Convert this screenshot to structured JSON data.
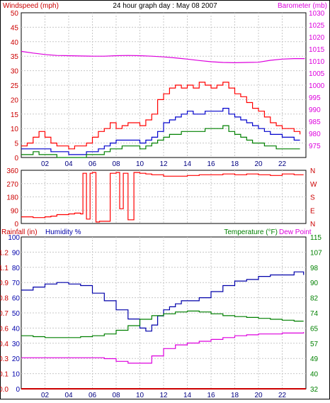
{
  "header": {
    "title": "24 hour graph day : May 08 2007",
    "left_label": "Windspeed (mph)",
    "right_label": "Barometer (mb)"
  },
  "colors": {
    "frame": "#000000",
    "grid": "#c8c8c8",
    "wind_red": "#ff0000",
    "gust_red": "#ff0000",
    "avg_blue": "#0000cc",
    "green": "#008000",
    "magenta": "#dd00dd",
    "axis_red": "#cc0000",
    "axis_blue": "#0000aa",
    "axis_green": "#008000"
  },
  "chart_data": [
    {
      "type": "line",
      "name": "wind-barometer",
      "title": "24 hour graph day : May 08 2007",
      "ylabel": "Windspeed (mph)",
      "y2label": "Barometer (mb)",
      "xlim": [
        0,
        24
      ],
      "ylim": [
        0,
        50
      ],
      "y2lim": [
        970,
        1030
      ],
      "xticks": [
        "02",
        "04",
        "06",
        "08",
        "10",
        "12",
        "14",
        "16",
        "18",
        "20",
        "22"
      ],
      "yticks": [
        "0",
        "5",
        "10",
        "15",
        "20",
        "25",
        "30",
        "35",
        "40",
        "45",
        "50"
      ],
      "y2ticks": [
        "975",
        "980",
        "985",
        "990",
        "995",
        "1000",
        "1005",
        "1010",
        "1015",
        "1020",
        "1025",
        "1030"
      ],
      "grid": true,
      "series": [
        {
          "id": "gust",
          "color": "#ff0000",
          "axis": "left",
          "x": [
            0,
            0.5,
            1,
            1.5,
            2,
            2.5,
            3,
            3.5,
            4,
            4.5,
            5,
            5.5,
            6,
            6.5,
            7,
            7.5,
            8,
            8.5,
            9,
            9.5,
            10,
            10.5,
            11,
            11.5,
            12,
            12.5,
            13,
            13.5,
            14,
            14.5,
            15,
            15.5,
            16,
            16.5,
            17,
            17.5,
            18,
            18.5,
            19,
            19.5,
            20,
            20.5,
            21,
            21.5,
            22,
            22.5,
            23,
            23.5
          ],
          "y": [
            4,
            5,
            7,
            9,
            7,
            5,
            4,
            4,
            3,
            4,
            4,
            5,
            7,
            9,
            10,
            12,
            10,
            11,
            12,
            12,
            11,
            13,
            15,
            20,
            22,
            24,
            25,
            24,
            25,
            24,
            26,
            25,
            24,
            25,
            26,
            24,
            22,
            21,
            19,
            17,
            16,
            14,
            12,
            11,
            10,
            10,
            9,
            8
          ]
        },
        {
          "id": "average",
          "color": "#0000cc",
          "axis": "left",
          "x": [
            0,
            0.5,
            1,
            1.5,
            2,
            2.5,
            3,
            3.5,
            4,
            4.5,
            5,
            5.5,
            6,
            6.5,
            7,
            7.5,
            8,
            8.5,
            9,
            9.5,
            10,
            10.5,
            11,
            11.5,
            12,
            12.5,
            13,
            13.5,
            14,
            14.5,
            15,
            15.5,
            16,
            16.5,
            17,
            17.5,
            18,
            18.5,
            19,
            19.5,
            20,
            20.5,
            21,
            21.5,
            22,
            22.5,
            23,
            23.5
          ],
          "y": [
            3,
            3,
            3,
            3,
            3,
            2,
            2,
            2,
            1,
            1,
            1,
            2,
            2,
            3,
            4,
            5,
            6,
            6,
            6,
            6,
            5,
            6,
            7,
            9,
            12,
            13,
            14,
            15,
            16,
            15,
            15,
            16,
            16,
            16,
            17,
            15,
            14,
            13,
            12,
            11,
            10,
            9,
            8,
            8,
            7,
            7,
            6,
            6
          ]
        },
        {
          "id": "wind",
          "color": "#008000",
          "axis": "left",
          "x": [
            0,
            0.5,
            1,
            1.5,
            2,
            2.5,
            3,
            3.5,
            4,
            4.5,
            5,
            5.5,
            6,
            6.5,
            7,
            7.5,
            8,
            8.5,
            9,
            9.5,
            10,
            10.5,
            11,
            11.5,
            12,
            12.5,
            13,
            13.5,
            14,
            14.5,
            15,
            15.5,
            16,
            16.5,
            17,
            17.5,
            18,
            18.5,
            19,
            19.5,
            20,
            20.5,
            21,
            21.5,
            22,
            22.5,
            23,
            23.5
          ],
          "y": [
            1,
            1,
            2,
            1,
            1,
            1,
            0,
            0,
            0,
            0,
            0,
            1,
            1,
            1,
            2,
            3,
            3,
            4,
            4,
            4,
            3,
            4,
            5,
            6,
            7,
            8,
            8,
            9,
            9,
            9,
            9,
            10,
            10,
            10,
            11,
            9,
            8,
            7,
            6,
            5,
            5,
            4,
            4,
            3,
            3,
            3,
            3,
            3
          ]
        },
        {
          "id": "barometer",
          "color": "#dd00dd",
          "axis": "right",
          "x": [
            0,
            1,
            2,
            3,
            4,
            5,
            6,
            7,
            8,
            9,
            10,
            11,
            12,
            13,
            14,
            15,
            16,
            17,
            18,
            19,
            20,
            21,
            22,
            23,
            23.9
          ],
          "y": [
            1014,
            1013.3,
            1012.7,
            1012.3,
            1012.2,
            1012.1,
            1012,
            1012,
            1012.2,
            1012.3,
            1012.2,
            1012,
            1011.7,
            1011.3,
            1010.8,
            1010.2,
            1009.7,
            1009.4,
            1009.3,
            1009.4,
            1009.5,
            1010.3,
            1010.8,
            1011,
            1011
          ]
        }
      ]
    },
    {
      "type": "scatter",
      "name": "wind-direction",
      "ylim": [
        0,
        360
      ],
      "yticks": [
        "0",
        "90",
        "180",
        "270",
        "360"
      ],
      "y2ticks": [
        "N",
        "W",
        "S",
        "E",
        "N"
      ],
      "grid": true,
      "series": [
        {
          "id": "direction",
          "color": "#ff0000",
          "x": [
            0,
            0.5,
            1,
            1.5,
            2,
            2.5,
            3,
            3.5,
            4,
            4.5,
            5,
            5.2,
            5.5,
            5.8,
            6,
            6.3,
            6.6,
            7,
            7.5,
            8,
            8.3,
            8.6,
            9,
            9.5,
            10,
            10.5,
            11,
            11.5,
            12,
            13,
            14,
            15,
            16,
            17,
            18,
            19,
            20,
            21,
            22,
            23,
            23.8
          ],
          "y": [
            45,
            45,
            40,
            40,
            45,
            50,
            60,
            60,
            65,
            70,
            65,
            340,
            30,
            340,
            345,
            10,
            15,
            15,
            340,
            345,
            100,
            340,
            25,
            345,
            340,
            335,
            330,
            330,
            320,
            320,
            325,
            330,
            330,
            335,
            330,
            335,
            330,
            325,
            335,
            330,
            330
          ]
        }
      ]
    },
    {
      "type": "line",
      "name": "temp-humidity",
      "ylabel": "Rainfall (in)",
      "ylabel2": "Humidity %",
      "y2label": "Temperature (°F)",
      "y2label2": "Dew Point",
      "xticks": [
        "02",
        "04",
        "06",
        "08",
        "10",
        "12",
        "14",
        "16",
        "18",
        "20",
        "22"
      ],
      "rain_ticks": [
        "0.0",
        "0.1",
        "0.3",
        "0.4",
        "0.6",
        "0.7",
        "0.8",
        "0.9",
        "1.1",
        "1.2"
      ],
      "hum_ticks": [
        "0",
        "10",
        "20",
        "30",
        "40",
        "50",
        "60",
        "70",
        "80",
        "90",
        "100"
      ],
      "temp_ticks": [
        "32",
        "40",
        "49",
        "57",
        "65",
        "74",
        "82",
        "90",
        "98",
        "107",
        "115"
      ],
      "ylim": [
        0,
        100
      ],
      "y2lim": [
        32,
        115
      ],
      "grid": true,
      "series": [
        {
          "id": "humidity",
          "color": "#0000aa",
          "axis": "humidity",
          "x": [
            0,
            1,
            2,
            3,
            4,
            5,
            6,
            7,
            8,
            9,
            10,
            10.5,
            11,
            11.5,
            12,
            12.5,
            13,
            13.5,
            14,
            15,
            16,
            17,
            18,
            19,
            20,
            21,
            22,
            23,
            23.8
          ],
          "y": [
            65,
            67,
            69,
            70,
            69,
            68,
            63,
            58,
            52,
            46,
            40,
            38,
            42,
            48,
            52,
            54,
            56,
            58,
            58,
            60,
            64,
            68,
            71,
            72,
            74,
            75,
            75,
            77,
            75
          ]
        },
        {
          "id": "temperature",
          "color": "#008000",
          "axis": "temp",
          "x": [
            0,
            1,
            2,
            3,
            4,
            5,
            6,
            7,
            8,
            9,
            10,
            11,
            12,
            13,
            14,
            15,
            16,
            17,
            18,
            19,
            20,
            21,
            22,
            23,
            23.8
          ],
          "y": [
            61,
            60.5,
            60,
            60,
            60,
            60.5,
            61,
            62,
            64,
            66.5,
            70,
            72,
            73,
            74,
            74.5,
            74,
            73,
            72,
            71.5,
            71,
            70.5,
            70,
            69.5,
            69,
            69
          ]
        },
        {
          "id": "dewpoint",
          "color": "#dd00dd",
          "axis": "temp",
          "x": [
            0,
            1,
            2,
            3,
            4,
            5,
            6,
            7,
            8,
            9,
            10,
            11,
            12,
            13,
            14,
            15,
            16,
            17,
            18,
            19,
            20,
            21,
            22,
            23,
            23.8
          ],
          "y": [
            49,
            49,
            49,
            49,
            49,
            49,
            49,
            48.5,
            47,
            46,
            46,
            50,
            54,
            56,
            57,
            58,
            59,
            60,
            61,
            61.5,
            62,
            62,
            62.5,
            62.5,
            63
          ]
        },
        {
          "id": "rainfall",
          "color": "#cc0000",
          "axis": "humidity",
          "x": [
            0,
            24
          ],
          "y": [
            0,
            0
          ]
        }
      ]
    }
  ]
}
